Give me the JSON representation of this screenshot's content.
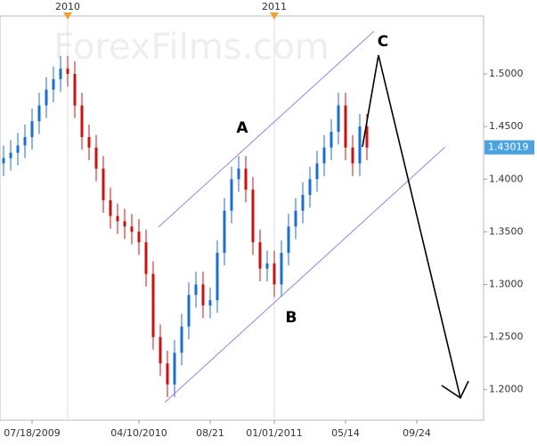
{
  "chart_data": {
    "type": "candlestick",
    "watermark": "ForexFilms.com",
    "categories": [
      null,
      null,
      null,
      null,
      "07/18/2009",
      null,
      null,
      null,
      null,
      null,
      null,
      null,
      null,
      null,
      null,
      null,
      null,
      null,
      null,
      "04/10/2010",
      null,
      null,
      null,
      null,
      null,
      null,
      null,
      null,
      null,
      "08/21",
      null,
      null,
      null,
      null,
      null,
      null,
      null,
      null,
      "01/01/2011",
      null,
      null,
      null,
      null,
      null,
      null,
      null,
      null,
      null,
      "05/14",
      null,
      null,
      null,
      null,
      null,
      null,
      null,
      null,
      null,
      "09/24",
      null,
      null,
      null,
      null,
      null,
      null,
      null,
      null,
      null
    ],
    "year_markers": [
      null,
      null,
      null,
      null,
      null,
      null,
      null,
      null,
      null,
      "2010",
      null,
      null,
      null,
      null,
      null,
      null,
      null,
      null,
      null,
      null,
      null,
      null,
      null,
      null,
      null,
      null,
      null,
      null,
      null,
      null,
      null,
      null,
      null,
      null,
      null,
      null,
      null,
      null,
      "2011",
      null,
      null,
      null,
      null,
      null,
      null,
      null,
      null,
      null,
      null,
      null,
      null,
      null,
      null,
      null,
      null,
      null,
      null,
      null,
      null,
      null,
      null,
      null,
      null,
      null,
      null,
      null,
      null,
      null
    ],
    "open": [
      1.415,
      1.42,
      1.425,
      1.432,
      1.44,
      1.455,
      1.47,
      1.485,
      1.495,
      1.505,
      1.5,
      1.47,
      1.44,
      1.43,
      1.41,
      1.38,
      1.365,
      1.36,
      1.355,
      1.35,
      1.34,
      1.31,
      1.25,
      1.225,
      1.205,
      1.235,
      1.26,
      1.29,
      1.3,
      1.28,
      1.285,
      1.33,
      1.37,
      1.4,
      1.41,
      1.39,
      1.34,
      1.315,
      1.32,
      1.3,
      1.33,
      1.355,
      1.37,
      1.385,
      1.4,
      1.415,
      1.43,
      1.445,
      1.47,
      1.43,
      1.415,
      1.45,
      null,
      null,
      null,
      null,
      null,
      null,
      null,
      null,
      null,
      null,
      null,
      null,
      null,
      null,
      null,
      null
    ],
    "high": [
      1.432,
      1.437,
      1.444,
      1.452,
      1.467,
      1.482,
      1.497,
      1.507,
      1.517,
      1.517,
      1.512,
      1.482,
      1.452,
      1.442,
      1.422,
      1.392,
      1.377,
      1.372,
      1.367,
      1.362,
      1.352,
      1.322,
      1.262,
      1.237,
      1.247,
      1.272,
      1.302,
      1.312,
      1.312,
      1.297,
      1.342,
      1.382,
      1.412,
      1.422,
      1.422,
      1.402,
      1.352,
      1.332,
      1.332,
      1.342,
      1.367,
      1.382,
      1.397,
      1.412,
      1.427,
      1.442,
      1.457,
      1.482,
      1.482,
      1.442,
      1.462,
      1.462,
      null,
      null,
      null,
      null,
      null,
      null,
      null,
      null,
      null,
      null,
      null,
      null,
      null,
      null,
      null,
      null
    ],
    "low": [
      1.403,
      1.408,
      1.413,
      1.42,
      1.428,
      1.443,
      1.458,
      1.473,
      1.483,
      1.488,
      1.458,
      1.428,
      1.418,
      1.398,
      1.368,
      1.353,
      1.348,
      1.343,
      1.338,
      1.328,
      1.298,
      1.238,
      1.213,
      1.193,
      1.193,
      1.223,
      1.248,
      1.278,
      1.268,
      1.268,
      1.273,
      1.318,
      1.358,
      1.388,
      1.378,
      1.328,
      1.303,
      1.303,
      1.288,
      1.288,
      1.318,
      1.343,
      1.358,
      1.373,
      1.388,
      1.403,
      1.418,
      1.433,
      1.418,
      1.403,
      1.403,
      1.418,
      null,
      null,
      null,
      null,
      null,
      null,
      null,
      null,
      null,
      null,
      null,
      null,
      null,
      null,
      null,
      null
    ],
    "close": [
      1.42,
      1.425,
      1.432,
      1.44,
      1.455,
      1.47,
      1.485,
      1.495,
      1.505,
      1.5,
      1.47,
      1.44,
      1.43,
      1.41,
      1.38,
      1.365,
      1.36,
      1.355,
      1.35,
      1.34,
      1.31,
      1.25,
      1.225,
      1.205,
      1.235,
      1.26,
      1.29,
      1.3,
      1.28,
      1.285,
      1.33,
      1.37,
      1.4,
      1.41,
      1.39,
      1.34,
      1.315,
      1.32,
      1.3,
      1.33,
      1.355,
      1.37,
      1.385,
      1.4,
      1.415,
      1.43,
      1.445,
      1.47,
      1.43,
      1.415,
      1.45,
      1.43,
      null,
      null,
      null,
      null,
      null,
      null,
      null,
      null,
      null,
      null,
      null,
      null,
      null,
      null,
      null,
      null
    ],
    "up_color": "#1a6fd1",
    "down_color": "#cc1111",
    "last_price": 1.43019,
    "ylim": [
      1.171,
      1.555
    ],
    "yticks": [
      {
        "value": 1.2,
        "label": "1.2000"
      },
      {
        "value": 1.25,
        "label": "1.2500"
      },
      {
        "value": 1.3,
        "label": "1.3000"
      },
      {
        "value": 1.35,
        "label": "1.3500"
      },
      {
        "value": 1.4,
        "label": "1.4000"
      },
      {
        "value": 1.45,
        "label": "1.4500"
      },
      {
        "value": 1.5,
        "label": "1.5000"
      }
    ],
    "annotations": [
      "A",
      "B",
      "C"
    ]
  }
}
